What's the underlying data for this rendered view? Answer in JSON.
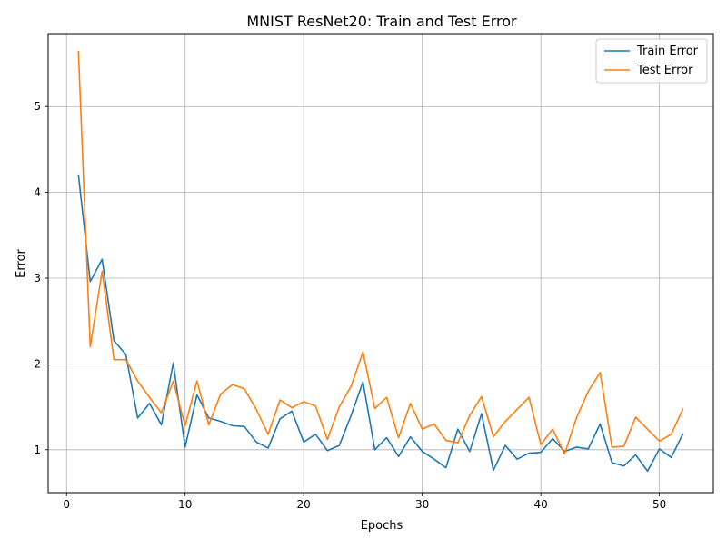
{
  "chart_data": {
    "type": "line",
    "title": "MNIST ResNet20: Train and Test Error",
    "xlabel": "Epochs",
    "ylabel": "Error",
    "xlim": [
      -1.55,
      54.55
    ],
    "ylim": [
      0.5,
      5.85
    ],
    "xticks": [
      0,
      10,
      20,
      30,
      40,
      50
    ],
    "yticks": [
      1,
      2,
      3,
      4,
      5
    ],
    "grid": true,
    "legend_position": "top-right",
    "x": [
      1,
      2,
      3,
      4,
      5,
      6,
      7,
      8,
      9,
      10,
      11,
      12,
      13,
      14,
      15,
      16,
      17,
      18,
      19,
      20,
      21,
      22,
      23,
      24,
      25,
      26,
      27,
      28,
      29,
      30,
      31,
      32,
      33,
      34,
      35,
      36,
      37,
      38,
      39,
      40,
      41,
      42,
      43,
      44,
      45,
      46,
      47,
      48,
      49,
      50,
      51,
      52
    ],
    "series": [
      {
        "name": "Train Error",
        "color": "#1f77b4",
        "values": [
          4.21,
          2.96,
          3.22,
          2.27,
          2.11,
          1.37,
          1.54,
          1.29,
          2.01,
          1.03,
          1.64,
          1.37,
          1.33,
          1.28,
          1.27,
          1.09,
          1.02,
          1.36,
          1.45,
          1.09,
          1.18,
          0.99,
          1.05,
          1.4,
          1.79,
          1.0,
          1.14,
          0.92,
          1.15,
          0.98,
          0.89,
          0.79,
          1.24,
          0.98,
          1.42,
          0.76,
          1.05,
          0.89,
          0.96,
          0.97,
          1.13,
          0.98,
          1.03,
          1.01,
          1.3,
          0.85,
          0.81,
          0.94,
          0.75,
          1.01,
          0.91,
          1.19
        ]
      },
      {
        "name": "Test Error",
        "color": "#ff7f0e",
        "values": [
          5.65,
          2.2,
          3.08,
          2.05,
          2.05,
          1.8,
          1.61,
          1.43,
          1.8,
          1.28,
          1.8,
          1.29,
          1.65,
          1.76,
          1.71,
          1.47,
          1.18,
          1.58,
          1.49,
          1.56,
          1.51,
          1.12,
          1.5,
          1.74,
          2.14,
          1.48,
          1.61,
          1.14,
          1.54,
          1.24,
          1.3,
          1.11,
          1.08,
          1.4,
          1.62,
          1.15,
          1.33,
          1.47,
          1.61,
          1.06,
          1.24,
          0.95,
          1.37,
          1.68,
          1.9,
          1.03,
          1.04,
          1.38,
          1.24,
          1.1,
          1.18,
          1.48
        ]
      }
    ]
  }
}
